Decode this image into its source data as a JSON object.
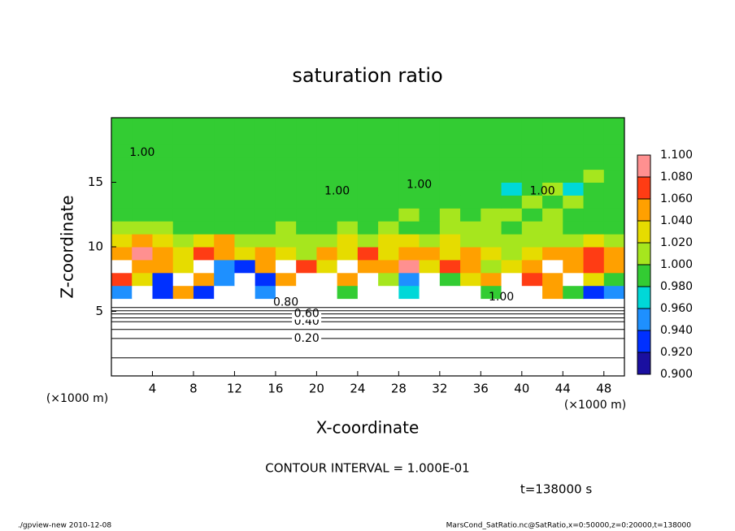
{
  "chart_data": {
    "type": "heatmap",
    "title": "saturation ratio",
    "xlabel": "X-coordinate",
    "ylabel": "Z-coordinate",
    "x_unit": "(×1000 m)",
    "y_unit": "(×1000 m)",
    "xlim": [
      0,
      50
    ],
    "ylim": [
      0,
      20
    ],
    "xticks": [
      4,
      8,
      12,
      16,
      20,
      24,
      28,
      32,
      36,
      40,
      44,
      48
    ],
    "yticks": [
      5,
      10,
      15
    ],
    "x": [
      1,
      3,
      5,
      7,
      9,
      11,
      13,
      15,
      17,
      19,
      21,
      23,
      25,
      27,
      29,
      31,
      33,
      35,
      37,
      39,
      41,
      43,
      45,
      47,
      49
    ],
    "z": [
      0.5,
      1.5,
      2.5,
      3.5,
      4.5,
      5.5,
      6.5,
      7.5,
      8.5,
      9.5,
      10.5,
      11.5,
      12.5,
      13.5,
      14.5,
      15.5,
      16.5,
      17.5,
      18.5,
      19.5
    ],
    "values": [
      [
        0.05,
        0.05,
        0.05,
        0.05,
        0.05,
        0.05,
        0.05,
        0.05,
        0.05,
        0.05,
        0.05,
        0.05,
        0.05,
        0.05,
        0.05,
        0.05,
        0.05,
        0.05,
        0.05,
        0.05,
        0.05,
        0.05,
        0.05,
        0.05,
        0.05
      ],
      [
        0.1,
        0.1,
        0.1,
        0.1,
        0.1,
        0.1,
        0.1,
        0.1,
        0.1,
        0.1,
        0.1,
        0.1,
        0.1,
        0.1,
        0.1,
        0.1,
        0.1,
        0.1,
        0.1,
        0.1,
        0.1,
        0.1,
        0.1,
        0.1,
        0.1
      ],
      [
        0.15,
        0.15,
        0.15,
        0.15,
        0.15,
        0.15,
        0.15,
        0.15,
        0.15,
        0.15,
        0.15,
        0.15,
        0.15,
        0.15,
        0.15,
        0.15,
        0.15,
        0.15,
        0.15,
        0.15,
        0.15,
        0.15,
        0.15,
        0.15,
        0.15
      ],
      [
        0.25,
        0.25,
        0.25,
        0.25,
        0.25,
        0.25,
        0.25,
        0.25,
        0.25,
        0.25,
        0.25,
        0.25,
        0.25,
        0.25,
        0.25,
        0.25,
        0.25,
        0.25,
        0.25,
        0.25,
        0.25,
        0.25,
        0.25,
        0.25,
        0.25
      ],
      [
        0.5,
        0.5,
        0.5,
        0.5,
        0.5,
        0.5,
        0.5,
        0.5,
        0.5,
        0.5,
        0.5,
        0.5,
        0.5,
        0.5,
        0.5,
        0.5,
        0.5,
        0.5,
        0.5,
        0.5,
        0.5,
        0.5,
        0.5,
        0.5,
        0.5
      ],
      [
        0.8,
        0.8,
        0.8,
        0.8,
        0.8,
        0.8,
        0.8,
        0.8,
        0.8,
        0.8,
        0.8,
        0.8,
        0.8,
        0.8,
        0.8,
        0.8,
        0.8,
        0.8,
        0.8,
        0.8,
        0.8,
        0.8,
        0.8,
        0.8,
        0.8
      ],
      [
        0.95,
        1.12,
        0.93,
        1.05,
        0.92,
        1.15,
        1.15,
        0.95,
        1.12,
        1.15,
        1.15,
        1.0,
        1.15,
        1.15,
        0.97,
        1.15,
        1.15,
        1.15,
        1.0,
        1.15,
        1.15,
        1.05,
        0.99,
        0.94,
        0.95
      ],
      [
        1.07,
        1.03,
        0.94,
        1.12,
        1.06,
        0.95,
        1.12,
        0.94,
        1.05,
        1.13,
        1.15,
        1.06,
        1.15,
        1.02,
        0.96,
        1.12,
        0.99,
        1.04,
        1.05,
        1.12,
        1.07,
        1.05,
        1.12,
        1.04,
        1.0
      ],
      [
        1.12,
        1.05,
        1.06,
        1.03,
        1.13,
        0.95,
        0.93,
        1.05,
        1.12,
        1.07,
        1.04,
        1.12,
        1.06,
        1.05,
        1.08,
        1.03,
        1.07,
        1.05,
        1.02,
        1.04,
        1.06,
        1.12,
        1.05,
        1.07,
        1.06
      ],
      [
        1.06,
        1.09,
        1.05,
        1.04,
        1.07,
        1.05,
        1.03,
        1.06,
        1.04,
        1.02,
        1.05,
        1.04,
        1.07,
        1.03,
        1.05,
        1.06,
        1.04,
        1.05,
        1.03,
        1.02,
        1.04,
        1.06,
        1.05,
        1.07,
        1.05
      ],
      [
        1.03,
        1.05,
        1.04,
        1.02,
        1.03,
        1.05,
        1.01,
        1.02,
        1.01,
        1.01,
        1.02,
        1.03,
        1.01,
        1.04,
        1.03,
        1.02,
        1.03,
        1.01,
        1.02,
        1.01,
        1.02,
        1.01,
        1.02,
        1.03,
        1.02
      ],
      [
        1.01,
        1.005,
        1.01,
        0.995,
        0.995,
        0.995,
        0.995,
        0.995,
        1.005,
        0.995,
        0.995,
        1.01,
        0.995,
        1.01,
        0.995,
        0.995,
        1.01,
        1.005,
        1.01,
        0.995,
        1.01,
        1.005,
        0.995,
        0.995,
        0.995
      ],
      [
        0.995,
        0.995,
        0.995,
        0.995,
        0.995,
        0.995,
        0.995,
        0.995,
        0.995,
        0.995,
        0.995,
        0.995,
        0.995,
        0.995,
        1.01,
        0.995,
        1.01,
        0.995,
        1.01,
        1.01,
        0.995,
        1.01,
        0.995,
        0.995,
        0.995
      ],
      [
        0.995,
        0.995,
        0.995,
        0.995,
        0.995,
        0.995,
        0.995,
        0.995,
        0.995,
        0.995,
        0.995,
        0.995,
        0.995,
        0.995,
        0.995,
        0.995,
        0.995,
        0.995,
        0.995,
        0.995,
        1.01,
        0.995,
        1.01,
        0.995,
        0.995
      ],
      [
        0.995,
        0.995,
        0.995,
        0.995,
        0.995,
        0.995,
        0.995,
        0.995,
        0.995,
        0.995,
        0.995,
        0.995,
        0.995,
        0.995,
        0.995,
        0.995,
        0.995,
        0.995,
        0.995,
        0.97,
        0.995,
        1.01,
        0.97,
        0.995,
        0.995
      ],
      [
        0.995,
        0.995,
        0.995,
        0.995,
        0.995,
        0.995,
        0.995,
        0.995,
        0.995,
        0.995,
        0.995,
        0.995,
        0.995,
        0.995,
        0.995,
        0.995,
        0.995,
        0.995,
        0.995,
        0.995,
        0.995,
        0.995,
        0.995,
        1.01,
        0.995
      ],
      [
        0.995,
        0.995,
        0.995,
        0.995,
        0.995,
        0.995,
        0.995,
        0.995,
        0.995,
        0.995,
        0.995,
        0.995,
        0.995,
        0.995,
        0.995,
        0.995,
        0.995,
        0.995,
        0.995,
        0.995,
        0.995,
        0.995,
        0.995,
        0.995,
        0.995
      ],
      [
        0.995,
        0.995,
        0.995,
        0.995,
        0.995,
        0.995,
        0.995,
        0.995,
        0.995,
        0.995,
        0.995,
        0.995,
        0.995,
        0.995,
        0.995,
        0.995,
        0.995,
        0.995,
        0.995,
        0.995,
        0.995,
        0.995,
        0.995,
        0.995,
        0.995
      ],
      [
        0.995,
        0.995,
        0.995,
        0.995,
        0.995,
        0.995,
        0.995,
        0.995,
        0.995,
        0.995,
        0.995,
        0.995,
        0.995,
        0.995,
        0.995,
        0.995,
        0.995,
        0.995,
        0.995,
        0.995,
        0.995,
        0.995,
        0.995,
        0.995,
        0.995
      ],
      [
        0.995,
        0.995,
        0.995,
        0.995,
        0.995,
        0.995,
        0.995,
        0.995,
        0.995,
        0.995,
        0.995,
        0.995,
        0.995,
        0.995,
        0.995,
        0.995,
        0.995,
        0.995,
        0.995,
        0.995,
        0.995,
        0.995,
        0.995,
        0.995,
        0.995
      ]
    ],
    "colorbar_ticks": [
      {
        "value": 1.1,
        "label": "1.100"
      },
      {
        "value": 1.08,
        "label": "1.080"
      },
      {
        "value": 1.06,
        "label": "1.060"
      },
      {
        "value": 1.04,
        "label": "1.040"
      },
      {
        "value": 1.02,
        "label": "1.020"
      },
      {
        "value": 1.0,
        "label": "1.000"
      },
      {
        "value": 0.98,
        "label": "0.980"
      },
      {
        "value": 0.96,
        "label": "0.960"
      },
      {
        "value": 0.94,
        "label": "0.940"
      },
      {
        "value": 0.92,
        "label": "0.920"
      },
      {
        "value": 0.9,
        "label": "0.900"
      }
    ],
    "colors": [
      "#1a0fa0",
      "#0030ff",
      "#1e90ff",
      "#00d8d8",
      "#33cc33",
      "#a6e61e",
      "#e6dc00",
      "#ffa000",
      "#ff3c14",
      "#ff9090"
    ],
    "contours": [
      {
        "level": 0.1,
        "z": 1.4
      },
      {
        "level": 0.2,
        "z": 2.9,
        "label": "0.20"
      },
      {
        "level": 0.3,
        "z": 3.6
      },
      {
        "level": 0.4,
        "z": 4.2,
        "label": "0.40"
      },
      {
        "level": 0.5,
        "z": 4.5
      },
      {
        "level": 0.6,
        "z": 4.8,
        "label": "0.60"
      },
      {
        "level": 0.7,
        "z": 5.05
      },
      {
        "level": 0.8,
        "z": 5.3
      }
    ],
    "annotations": [
      {
        "text": "1.00",
        "x": 3,
        "z": 17.3
      },
      {
        "text": "1.00",
        "x": 22,
        "z": 14.3
      },
      {
        "text": "1.00",
        "x": 30,
        "z": 14.8
      },
      {
        "text": "1.00",
        "x": 42,
        "z": 14.3
      },
      {
        "text": "1.00",
        "x": 38,
        "z": 6.1
      },
      {
        "text": "0.80",
        "x": 17,
        "z": 5.7
      }
    ],
    "contour_interval": "CONTOUR INTERVAL = 1.000E-01",
    "time": "t=138000 s",
    "footer_left": "./gpview-new  2010-12-08",
    "footer_right": "MarsCond_SatRatio.nc@SatRatio,x=0:50000,z=0:20000,t=138000"
  }
}
